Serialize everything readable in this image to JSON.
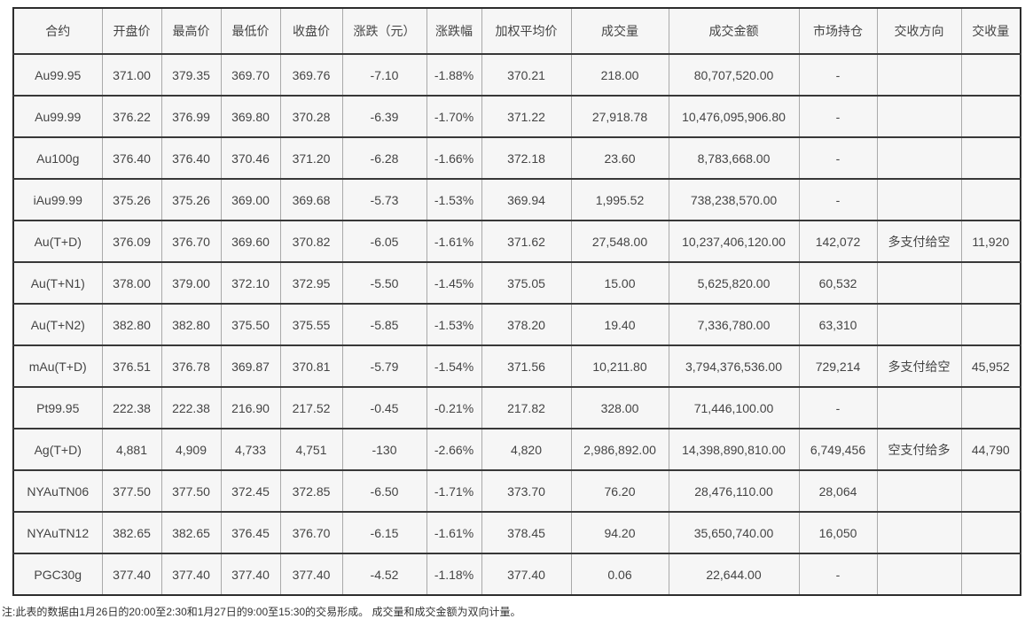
{
  "page": {
    "footer_note": "注:此表的数据由1月26日的20:00至2:30和1月27日的9:00至15:30的交易形成。 成交量和成交金额为双向计量。"
  },
  "colors": {
    "cell_background": "#f6f6f6",
    "frame_border": "#2d2d2d",
    "row_border": "#383838",
    "column_border": "#a9a9a9",
    "text": "#444444"
  },
  "chart_data": {
    "type": "table",
    "columns": [
      "合约",
      "开盘价",
      "最高价",
      "最低价",
      "收盘价",
      "涨跌（元）",
      "涨跌幅",
      "加权平均价",
      "成交量",
      "成交金额",
      "市场持仓",
      "交收方向",
      "交收量"
    ],
    "rows": [
      [
        "Au99.95",
        "371.00",
        "379.35",
        "369.70",
        "369.76",
        "-7.10",
        "-1.88%",
        "370.21",
        "218.00",
        "80,707,520.00",
        "-",
        "",
        ""
      ],
      [
        "Au99.99",
        "376.22",
        "376.99",
        "369.80",
        "370.28",
        "-6.39",
        "-1.70%",
        "371.22",
        "27,918.78",
        "10,476,095,906.80",
        "-",
        "",
        ""
      ],
      [
        "Au100g",
        "376.40",
        "376.40",
        "370.46",
        "371.20",
        "-6.28",
        "-1.66%",
        "372.18",
        "23.60",
        "8,783,668.00",
        "-",
        "",
        ""
      ],
      [
        "iAu99.99",
        "375.26",
        "375.26",
        "369.00",
        "369.68",
        "-5.73",
        "-1.53%",
        "369.94",
        "1,995.52",
        "738,238,570.00",
        "-",
        "",
        ""
      ],
      [
        "Au(T+D)",
        "376.09",
        "376.70",
        "369.60",
        "370.82",
        "-6.05",
        "-1.61%",
        "371.62",
        "27,548.00",
        "10,237,406,120.00",
        "142,072",
        "多支付给空",
        "11,920"
      ],
      [
        "Au(T+N1)",
        "378.00",
        "379.00",
        "372.10",
        "372.95",
        "-5.50",
        "-1.45%",
        "375.05",
        "15.00",
        "5,625,820.00",
        "60,532",
        "",
        ""
      ],
      [
        "Au(T+N2)",
        "382.80",
        "382.80",
        "375.50",
        "375.55",
        "-5.85",
        "-1.53%",
        "378.20",
        "19.40",
        "7,336,780.00",
        "63,310",
        "",
        ""
      ],
      [
        "mAu(T+D)",
        "376.51",
        "376.78",
        "369.87",
        "370.81",
        "-5.79",
        "-1.54%",
        "371.56",
        "10,211.80",
        "3,794,376,536.00",
        "729,214",
        "多支付给空",
        "45,952"
      ],
      [
        "Pt99.95",
        "222.38",
        "222.38",
        "216.90",
        "217.52",
        "-0.45",
        "-0.21%",
        "217.82",
        "328.00",
        "71,446,100.00",
        "-",
        "",
        ""
      ],
      [
        "Ag(T+D)",
        "4,881",
        "4,909",
        "4,733",
        "4,751",
        "-130",
        "-2.66%",
        "4,820",
        "2,986,892.00",
        "14,398,890,810.00",
        "6,749,456",
        "空支付给多",
        "44,790"
      ],
      [
        "NYAuTN06",
        "377.50",
        "377.50",
        "372.45",
        "372.85",
        "-6.50",
        "-1.71%",
        "373.70",
        "76.20",
        "28,476,110.00",
        "28,064",
        "",
        ""
      ],
      [
        "NYAuTN12",
        "382.65",
        "382.65",
        "376.45",
        "376.70",
        "-6.15",
        "-1.61%",
        "378.45",
        "94.20",
        "35,650,740.00",
        "16,050",
        "",
        ""
      ],
      [
        "PGC30g",
        "377.40",
        "377.40",
        "377.40",
        "377.40",
        "-4.52",
        "-1.18%",
        "377.40",
        "0.06",
        "22,644.00",
        "-",
        "",
        ""
      ]
    ]
  }
}
